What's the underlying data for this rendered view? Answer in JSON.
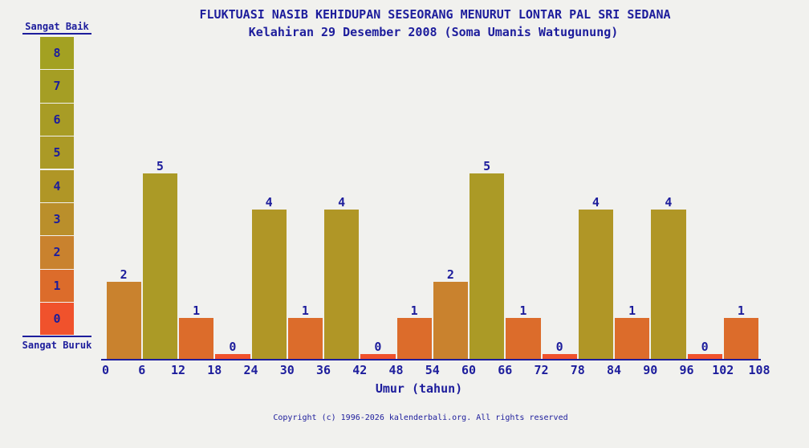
{
  "title": "FLUKTUASI NASIB KEHIDUPAN SESEORANG MENURUT LONTAR PAL SRI SEDANA",
  "subtitle": "Kelahiran 29 Desember 2008 (Soma Umanis Watugunung)",
  "copyright": "Copyright (c) 1996-2026 kalenderbali.org. All rights reserved",
  "colors": {
    "background": "#f1f1ee",
    "text_navy": "#1d1d9c",
    "axis": "#1d1d9c",
    "value_scale": {
      "0": "#f0522c",
      "1": "#dc6c2b",
      "2": "#c9822e",
      "3": "#ba8f2b",
      "4": "#b09626",
      "5": "#ab9a26",
      "6": "#a89c25",
      "7": "#a59e24",
      "8": "#a3a122"
    }
  },
  "legend": {
    "top_label": "Sangat Baik",
    "bottom_label": "Sangat Buruk",
    "values": [
      8,
      7,
      6,
      5,
      4,
      3,
      2,
      1,
      0
    ]
  },
  "chart_data": {
    "type": "bar",
    "title": "FLUKTUASI NASIB KEHIDUPAN SESEORANG MENURUT LONTAR PAL SRI SEDANA",
    "subtitle": "Kelahiran 29 Desember 2008 (Soma Umanis Watugunung)",
    "xlabel": "Umur (tahun)",
    "ylabel": "",
    "ylim": [
      0,
      8
    ],
    "bin_width_years": 6,
    "x_ticks": [
      0,
      6,
      12,
      18,
      24,
      30,
      36,
      42,
      48,
      54,
      60,
      66,
      72,
      78,
      84,
      90,
      96,
      102,
      108
    ],
    "categories": [
      "0-6",
      "6-12",
      "12-18",
      "18-24",
      "24-30",
      "30-36",
      "36-42",
      "42-48",
      "48-54",
      "54-60",
      "60-66",
      "66-72",
      "72-78",
      "78-84",
      "84-90",
      "90-96",
      "96-102",
      "102-108"
    ],
    "values": [
      2,
      5,
      1,
      0,
      4,
      1,
      4,
      0,
      1,
      2,
      5,
      1,
      0,
      4,
      1,
      4,
      0,
      1
    ],
    "grid": false,
    "legend_position": "left",
    "value_scale": {
      "best_label": "Sangat Baik",
      "worst_label": "Sangat Buruk",
      "max": 8,
      "min": 0
    }
  }
}
